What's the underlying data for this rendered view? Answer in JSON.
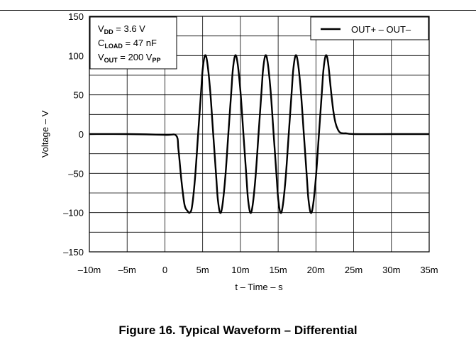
{
  "figure": {
    "caption": "Figure 16. Typical Waveform – Differential"
  },
  "chart_data": {
    "type": "line",
    "xlabel": "t – Time – s",
    "ylabel": "Voltage – V",
    "xlim": [
      -0.01,
      0.035
    ],
    "ylim": [
      -150,
      150
    ],
    "x_ticks": [
      -0.01,
      -0.005,
      0,
      0.005,
      0.01,
      0.015,
      0.02,
      0.025,
      0.03,
      0.035
    ],
    "x_tick_labels": [
      "–10m",
      "–5m",
      "0",
      "5m",
      "10m",
      "15m",
      "20m",
      "25m",
      "30m",
      "35m"
    ],
    "y_ticks": [
      -150,
      -100,
      -50,
      0,
      50,
      100,
      150
    ],
    "y_tick_labels": [
      "–150",
      "–100",
      "–50",
      "0",
      "50",
      "100",
      "150"
    ],
    "grid": true,
    "legend_position": "top-right",
    "annotation": {
      "lines": [
        {
          "main": "V",
          "sub": "DD",
          "rest": " = 3.6 V",
          "rest_sub": ""
        },
        {
          "main": "C",
          "sub": "LOAD",
          "rest": " = 47 nF",
          "rest_sub": ""
        },
        {
          "main": "V",
          "sub": "OUT",
          "rest": " = 200 V",
          "rest_sub": "PP"
        }
      ]
    },
    "series": [
      {
        "name": "OUT+ – OUT–",
        "color": "#000000",
        "x": [
          -0.01,
          -0.005,
          0.0,
          0.0015,
          0.0018,
          0.0022,
          0.0026,
          0.003,
          0.0033,
          0.0036,
          0.004,
          0.0044,
          0.0048,
          0.005,
          0.0053,
          0.0056,
          0.006,
          0.0064,
          0.0068,
          0.007,
          0.0073,
          0.0076,
          0.008,
          0.0084,
          0.0088,
          0.009,
          0.0093,
          0.0096,
          0.01,
          0.0104,
          0.0108,
          0.011,
          0.0113,
          0.0116,
          0.012,
          0.0124,
          0.0128,
          0.013,
          0.0133,
          0.0136,
          0.014,
          0.0144,
          0.0148,
          0.015,
          0.0153,
          0.0156,
          0.016,
          0.0164,
          0.0168,
          0.017,
          0.0173,
          0.0176,
          0.018,
          0.0184,
          0.0188,
          0.019,
          0.0193,
          0.0196,
          0.02,
          0.0204,
          0.0208,
          0.021,
          0.0213,
          0.0216,
          0.022,
          0.0223,
          0.0226,
          0.0229,
          0.0232,
          0.0236,
          0.024,
          0.025,
          0.03,
          0.035
        ],
        "y": [
          0,
          0,
          -1,
          -2,
          -20,
          -60,
          -90,
          -98,
          -100,
          -92,
          -55,
          0,
          55,
          82,
          100,
          92,
          55,
          0,
          -55,
          -82,
          -100,
          -92,
          -55,
          0,
          55,
          82,
          100,
          92,
          55,
          0,
          -55,
          -82,
          -100,
          -92,
          -55,
          0,
          55,
          82,
          100,
          92,
          55,
          0,
          -55,
          -82,
          -100,
          -92,
          -55,
          0,
          55,
          82,
          100,
          92,
          55,
          0,
          -55,
          -82,
          -100,
          -92,
          -55,
          0,
          55,
          82,
          100,
          92,
          55,
          30,
          14,
          6,
          2,
          1,
          1,
          0,
          0,
          0
        ]
      }
    ]
  }
}
